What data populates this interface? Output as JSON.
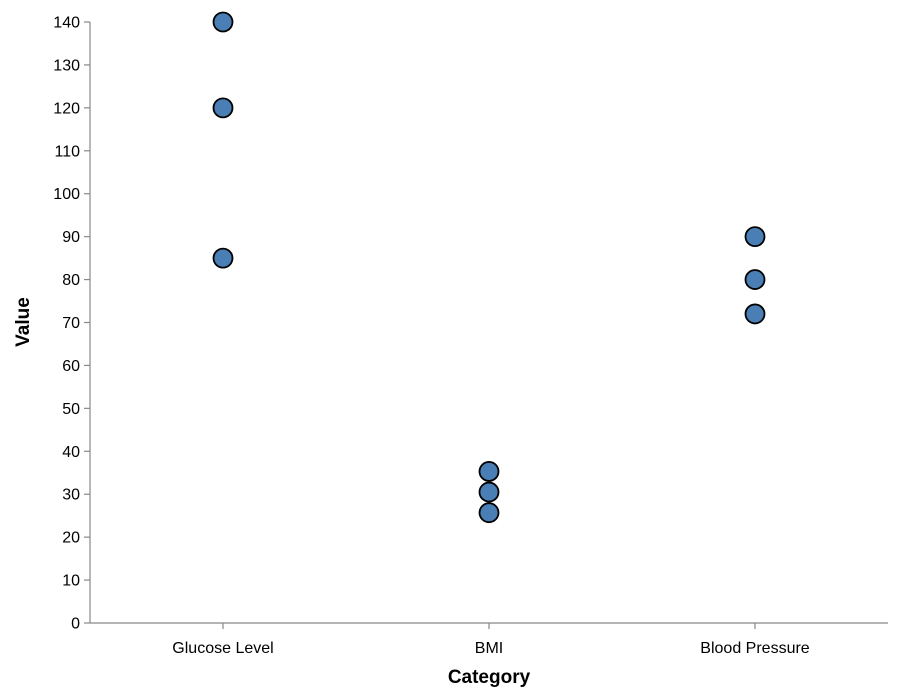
{
  "chart_data": {
    "type": "scatter",
    "xlabel": "Category",
    "ylabel": "Value",
    "categories": [
      "Glucose Level",
      "BMI",
      "Blood Pressure"
    ],
    "points": [
      {
        "category": "Glucose Level",
        "value": 140
      },
      {
        "category": "Glucose Level",
        "value": 120
      },
      {
        "category": "Glucose Level",
        "value": 85
      },
      {
        "category": "BMI",
        "value": 35.3
      },
      {
        "category": "BMI",
        "value": 30.5
      },
      {
        "category": "BMI",
        "value": 25.7
      },
      {
        "category": "Blood Pressure",
        "value": 90
      },
      {
        "category": "Blood Pressure",
        "value": 80
      },
      {
        "category": "Blood Pressure",
        "value": 72
      }
    ],
    "ylim": [
      0,
      140
    ],
    "yticks": [
      0,
      10,
      20,
      30,
      40,
      50,
      60,
      70,
      80,
      90,
      100,
      110,
      120,
      130,
      140
    ],
    "grid": false,
    "colors": {
      "point_fill": "#4a7fb5",
      "point_stroke": "#000000",
      "axis": "#888888"
    }
  }
}
